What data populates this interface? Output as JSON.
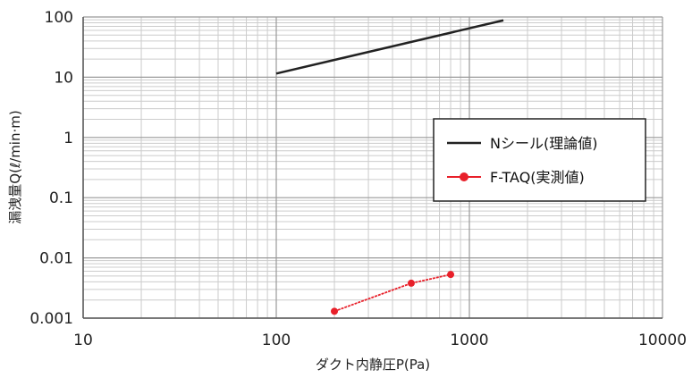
{
  "chart_data": {
    "type": "line",
    "xscale": "log",
    "yscale": "log",
    "xlim": [
      10,
      10000
    ],
    "ylim": [
      0.001,
      100
    ],
    "x_ticks": [
      "10",
      "100",
      "1000",
      "10000"
    ],
    "y_ticks": [
      "0.001",
      "0.01",
      "0.1",
      "1",
      "10",
      "100"
    ],
    "xlabel": "ダクト内静圧P(Pa)",
    "ylabel": "漏洩量Q(ℓ/min·m)",
    "grid": true,
    "legend_position": "right-middle",
    "series": [
      {
        "name": "Nシール(理論値)",
        "color": "#222222",
        "marker": false,
        "x": [
          100,
          1500
        ],
        "y": [
          11.5,
          88
        ]
      },
      {
        "name": "F-TAQ(実測値)",
        "color": "#e8202a",
        "marker": true,
        "x": [
          200,
          500,
          800
        ],
        "y": [
          0.0013,
          0.0038,
          0.0053
        ]
      }
    ]
  }
}
